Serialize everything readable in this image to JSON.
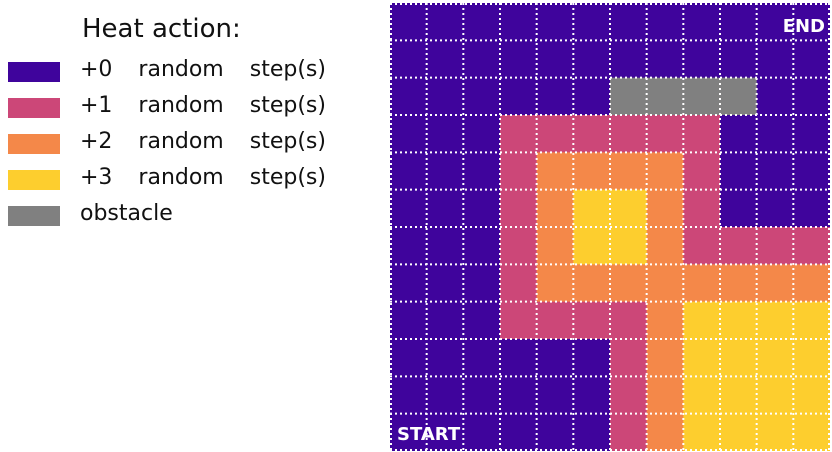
{
  "legend": {
    "title": "Heat action:",
    "items": [
      {
        "label": "+0  random  step(s)",
        "color": "#3F049C"
      },
      {
        "label": "+1  random  step(s)",
        "color": "#CC4778"
      },
      {
        "label": "+2  random  step(s)",
        "color": "#F48849"
      },
      {
        "label": "+3  random  step(s)",
        "color": "#FDCE2E"
      },
      {
        "label": "obstacle",
        "color": "#808080"
      }
    ]
  },
  "grid": {
    "rows": 12,
    "cols": 12,
    "line_color": "#FFFFFF",
    "cells": [
      "000000000000",
      "000000000000",
      "000000OOOO00",
      "000111111000",
      "000122221000",
      "000123321000",
      "000123321111",
      "000122222222",
      "000111123333",
      "000000123333",
      "000000123333",
      "000000123333"
    ],
    "start_label": "START",
    "end_label": "END"
  }
}
